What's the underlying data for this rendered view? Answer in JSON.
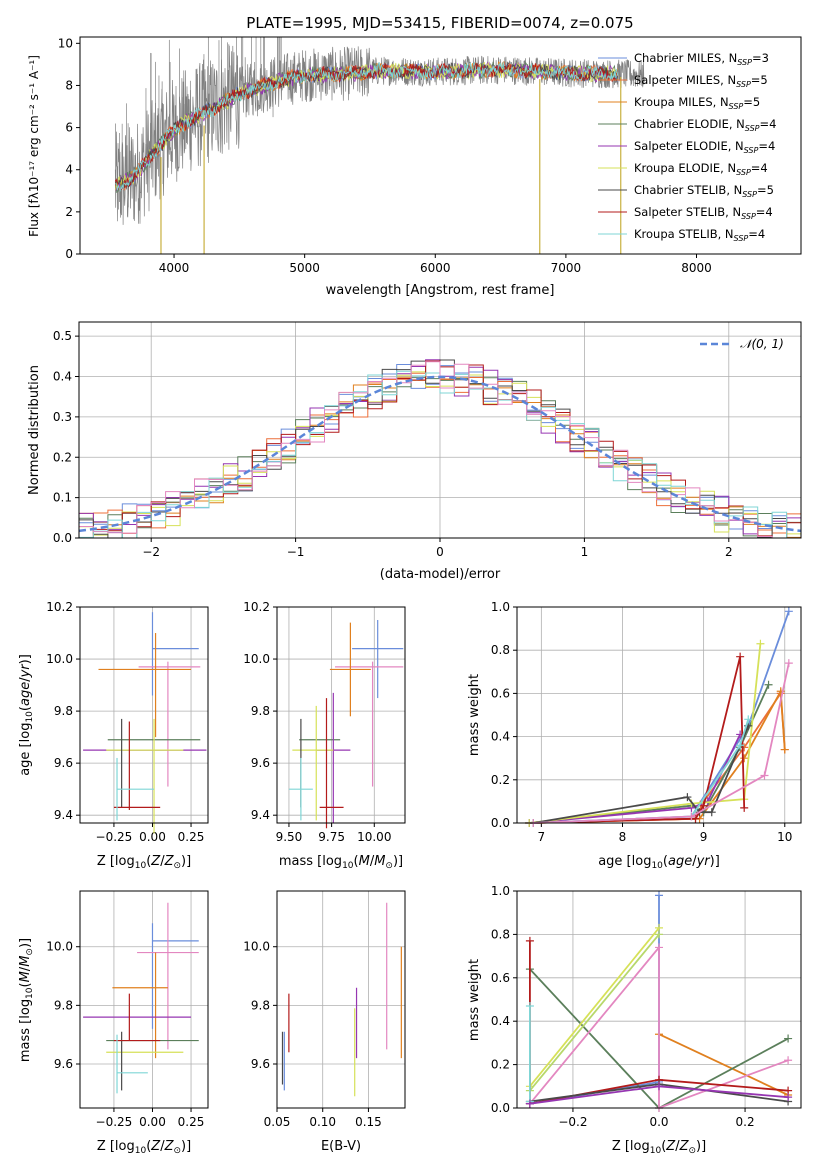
{
  "title": "PLATE=1995, MJD=53415, FIBERID=0074, z=0.075",
  "colors": {
    "Chabrier MILES": "#6a8ddb",
    "Salpeter MILES": "#ec6f3a",
    "Kroupa MILES": "#e0801f",
    "Chabrier ELODIE": "#5b7f5b",
    "Salpeter ELODIE": "#9636b2",
    "Kroupa ELODIE": "#d6e158",
    "Chabrier STELIB": "#4a4a4a",
    "Salpeter STELIB": "#b31b1b",
    "Kroupa STELIB": "#7fd6d6",
    "pink": "#e387c0",
    "green": "#b7d86b",
    "data": "#808080",
    "normal": "#5b86d8"
  },
  "chart_data": [
    {
      "id": "spectrum",
      "type": "line",
      "xlabel": "wavelength [Angstrom, rest frame]",
      "ylabel": "Flux [fλ10⁻¹⁷ erg cm⁻² s⁻¹ A⁻¹]",
      "xlim": [
        3280,
        8800
      ],
      "ylim": [
        0,
        10.3
      ],
      "xticks": [
        4000,
        5000,
        6000,
        7000,
        8000
      ],
      "yticks": [
        0,
        2,
        4,
        6,
        8,
        10
      ],
      "grid": false,
      "legend_position": "right",
      "continuum": [
        [
          3550,
          3.2
        ],
        [
          3700,
          3.7
        ],
        [
          3800,
          4.5
        ],
        [
          3900,
          5.2
        ],
        [
          4000,
          5.9
        ],
        [
          4100,
          6.3
        ],
        [
          4300,
          6.9
        ],
        [
          4500,
          7.6
        ],
        [
          4800,
          8.2
        ],
        [
          5000,
          8.5
        ],
        [
          5300,
          8.55
        ],
        [
          5600,
          8.7
        ],
        [
          6000,
          8.65
        ],
        [
          6500,
          8.75
        ],
        [
          7000,
          8.6
        ],
        [
          7400,
          8.55
        ],
        [
          7600,
          8.5
        ]
      ],
      "series": [
        {
          "name": "Chabrier MILES, N_SSP=3",
          "label_prefix": "Chabrier MILES, N",
          "label_sub": "SSP",
          "label_suffix": "=3"
        },
        {
          "name": "Salpeter MILES, N_SSP=5",
          "label_prefix": "Salpeter MILES, N",
          "label_sub": "SSP",
          "label_suffix": "=5"
        },
        {
          "name": "Kroupa MILES, N_SSP=5",
          "label_prefix": "Kroupa MILES, N",
          "label_sub": "SSP",
          "label_suffix": "=5"
        },
        {
          "name": "Chabrier ELODIE, N_SSP=4",
          "label_prefix": "Chabrier ELODIE, N",
          "label_sub": "SSP",
          "label_suffix": "=4"
        },
        {
          "name": "Salpeter ELODIE, N_SSP=4",
          "label_prefix": "Salpeter ELODIE, N",
          "label_sub": "SSP",
          "label_suffix": "=4"
        },
        {
          "name": "Kroupa ELODIE, N_SSP=4",
          "label_prefix": "Kroupa ELODIE, N",
          "label_sub": "SSP",
          "label_suffix": "=4"
        },
        {
          "name": "Chabrier STELIB, N_SSP=5",
          "label_prefix": "Chabrier STELIB, N",
          "label_sub": "SSP",
          "label_suffix": "=5"
        },
        {
          "name": "Salpeter STELIB, N_SSP=4",
          "label_prefix": "Salpeter STELIB, N",
          "label_sub": "SSP",
          "label_suffix": "=4"
        },
        {
          "name": "Kroupa STELIB, N_SSP=4",
          "label_prefix": "Kroupa STELIB, N",
          "label_sub": "SSP",
          "label_suffix": "=4"
        }
      ],
      "spikes": [
        {
          "x": 3900,
          "y0": 4.6,
          "y1": 0
        },
        {
          "x": 4230,
          "y0": 6.1,
          "y1": 0
        },
        {
          "x": 6800,
          "y0": 8.3,
          "y1": 0
        },
        {
          "x": 7420,
          "y0": 8.4,
          "y1": 0
        }
      ]
    },
    {
      "id": "residuals",
      "type": "bar",
      "xlabel": "(data-model)/error",
      "ylabel": "Normed distribution",
      "xlim": [
        -2.5,
        2.5
      ],
      "ylim": [
        0,
        0.535
      ],
      "xticks": [
        -2,
        -1,
        0,
        1,
        2
      ],
      "yticks": [
        0,
        0.1,
        0.2,
        0.3,
        0.4,
        0.5
      ],
      "grid": true,
      "legend": "N(0,1)",
      "legend_position": "top-right",
      "bin_width": 0.1
    },
    {
      "id": "age-vs-Z",
      "type": "scatter",
      "xlabel": "Z [log₁₀(Z/Z⊙)]",
      "ylabel": "age  [log₁₀(age/yr)]",
      "xlim": [
        -0.47,
        0.36
      ],
      "ylim": [
        9.37,
        10.2
      ],
      "xticks": [
        -0.25,
        0.0,
        0.25
      ],
      "yticks": [
        9.4,
        9.6,
        9.8,
        10.0,
        10.2
      ],
      "grid": true,
      "points": [
        {
          "color": "Chabrier MILES",
          "x": 0.15,
          "y": 10.04,
          "xerr": 0.15,
          "yerr": 0.0
        },
        {
          "color": "Chabrier MILES",
          "x": 0.0,
          "y": 10.02,
          "xerr": 0.0,
          "yerr": 0.16
        },
        {
          "color": "pink",
          "x": 0.11,
          "y": 9.97,
          "xerr": 0.2,
          "yerr": 0.0
        },
        {
          "color": "pink",
          "x": 0.1,
          "y": 9.75,
          "xerr": 0.0,
          "yerr": 0.24
        },
        {
          "color": "Kroupa MILES",
          "x": -0.05,
          "y": 9.96,
          "xerr": 0.3,
          "yerr": 0.0
        },
        {
          "color": "Kroupa MILES",
          "x": 0.02,
          "y": 9.9,
          "xerr": 0.0,
          "yerr": 0.2
        },
        {
          "color": "Chabrier ELODIE",
          "x": 0.01,
          "y": 9.69,
          "xerr": 0.3,
          "yerr": 0.0
        },
        {
          "color": "Salpeter ELODIE",
          "x": -0.05,
          "y": 9.65,
          "xerr": 0.4,
          "yerr": 0.0
        },
        {
          "color": "Kroupa ELODIE",
          "x": -0.05,
          "y": 9.65,
          "xerr": 0.25,
          "yerr": 0.0
        },
        {
          "color": "Kroupa ELODIE",
          "x": 0.01,
          "y": 9.55,
          "xerr": 0.0,
          "yerr": 0.22
        },
        {
          "color": "Chabrier STELIB",
          "x": -0.2,
          "y": 9.6,
          "xerr": 0.0,
          "yerr": 0.17
        },
        {
          "color": "Salpeter STELIB",
          "x": -0.15,
          "y": 9.59,
          "xerr": 0.0,
          "yerr": 0.17
        },
        {
          "color": "Salpeter STELIB",
          "x": -0.1,
          "y": 9.43,
          "xerr": 0.15,
          "yerr": 0.0
        },
        {
          "color": "Kroupa STELIB",
          "x": -0.11,
          "y": 9.5,
          "xerr": 0.12,
          "yerr": 0.0
        },
        {
          "color": "Kroupa STELIB",
          "x": -0.23,
          "y": 9.5,
          "xerr": 0.0,
          "yerr": 0.12
        }
      ]
    },
    {
      "id": "age-vs-mass",
      "type": "scatter",
      "xlabel": "mass [log₁₀(M/M⊙)]",
      "xlim": [
        9.43,
        10.18
      ],
      "ylim": [
        9.37,
        10.2
      ],
      "xticks": [
        9.5,
        9.75,
        10.0
      ],
      "yticks": [
        9.4,
        9.6,
        9.8,
        10.0,
        10.2
      ],
      "grid": true,
      "points": [
        {
          "color": "Chabrier MILES",
          "x": 10.02,
          "y": 10.04,
          "xerr": 0.15,
          "yerr": 0.0
        },
        {
          "color": "Chabrier MILES",
          "x": 10.02,
          "y": 10.0,
          "xerr": 0.0,
          "yerr": 0.15
        },
        {
          "color": "pink",
          "x": 9.97,
          "y": 9.97,
          "xerr": 0.2,
          "yerr": 0.0
        },
        {
          "color": "pink",
          "x": 9.99,
          "y": 9.75,
          "xerr": 0.0,
          "yerr": 0.24
        },
        {
          "color": "Kroupa MILES",
          "x": 9.86,
          "y": 9.96,
          "xerr": 0.12,
          "yerr": 0.0
        },
        {
          "color": "Kroupa MILES",
          "x": 9.86,
          "y": 9.96,
          "xerr": 0.0,
          "yerr": 0.18
        },
        {
          "color": "Chabrier ELODIE",
          "x": 9.68,
          "y": 9.69,
          "xerr": 0.12,
          "yerr": 0.0
        },
        {
          "color": "Salpeter ELODIE",
          "x": 9.76,
          "y": 9.65,
          "xerr": 0.1,
          "yerr": 0.0
        },
        {
          "color": "Salpeter ELODIE",
          "x": 9.76,
          "y": 9.62,
          "xerr": 0.0,
          "yerr": 0.25
        },
        {
          "color": "Kroupa ELODIE",
          "x": 9.64,
          "y": 9.65,
          "xerr": 0.12,
          "yerr": 0.0
        },
        {
          "color": "Kroupa ELODIE",
          "x": 9.66,
          "y": 9.6,
          "xerr": 0.0,
          "yerr": 0.22
        },
        {
          "color": "Chabrier STELIB",
          "x": 9.57,
          "y": 9.6,
          "xerr": 0.0,
          "yerr": 0.17
        },
        {
          "color": "Salpeter STELIB",
          "x": 9.72,
          "y": 9.6,
          "xerr": 0.0,
          "yerr": 0.25
        },
        {
          "color": "Salpeter STELIB",
          "x": 9.75,
          "y": 9.43,
          "xerr": 0.07,
          "yerr": 0.0
        },
        {
          "color": "Kroupa STELIB",
          "x": 9.57,
          "y": 9.5,
          "xerr": 0.07,
          "yerr": 0.0
        },
        {
          "color": "Kroupa STELIB",
          "x": 9.57,
          "y": 9.5,
          "xerr": 0.0,
          "yerr": 0.12
        }
      ]
    },
    {
      "id": "weight-vs-age",
      "type": "line",
      "xlabel": "age  [log₁₀(age/yr)]",
      "ylabel": "mass weight",
      "xlim": [
        6.7,
        10.2
      ],
      "ylim": [
        0,
        1.0
      ],
      "xticks": [
        7,
        8,
        9,
        10
      ],
      "yticks": [
        0.0,
        0.2,
        0.4,
        0.6,
        0.8,
        1.0
      ],
      "grid": true,
      "series": [
        {
          "color": "Chabrier MILES",
          "x": [
            6.85,
            8.85,
            9.55,
            10.05
          ],
          "y": [
            0.0,
            0.03,
            0.45,
            0.98
          ]
        },
        {
          "color": "Salpeter MILES",
          "x": [
            6.85,
            8.9,
            9.0,
            9.5,
            9.95,
            10.0
          ],
          "y": [
            0.0,
            0.02,
            0.1,
            0.35,
            0.6,
            0.34
          ]
        },
        {
          "color": "Kroupa MILES",
          "x": [
            6.9,
            8.95,
            9.5,
            9.95,
            10.0
          ],
          "y": [
            0.0,
            0.02,
            0.3,
            0.61,
            0.34
          ]
        },
        {
          "color": "Chabrier ELODIE",
          "x": [
            6.85,
            8.85,
            9.0,
            9.45,
            9.8
          ],
          "y": [
            0.0,
            0.08,
            0.05,
            0.35,
            0.64
          ]
        },
        {
          "color": "Salpeter ELODIE",
          "x": [
            6.85,
            8.85,
            9.05,
            9.45
          ],
          "y": [
            0.0,
            0.07,
            0.1,
            0.41
          ]
        },
        {
          "color": "Kroupa ELODIE",
          "x": [
            6.85,
            8.85,
            9.5,
            9.7
          ],
          "y": [
            0.0,
            0.09,
            0.11,
            0.83
          ]
        },
        {
          "color": "Chabrier STELIB",
          "x": [
            6.9,
            8.8,
            8.95,
            9.1,
            9.55
          ],
          "y": [
            0.0,
            0.12,
            0.05,
            0.05,
            0.45
          ]
        },
        {
          "color": "Salpeter STELIB",
          "x": [
            6.9,
            8.9,
            9.0,
            9.45,
            9.5
          ],
          "y": [
            0.0,
            0.02,
            0.08,
            0.77,
            0.07
          ]
        },
        {
          "color": "Kroupa STELIB",
          "x": [
            6.9,
            8.85,
            9.45,
            9.55
          ],
          "y": [
            0.0,
            0.03,
            0.36,
            0.48
          ]
        },
        {
          "color": "pink",
          "x": [
            6.9,
            8.85,
            9.75,
            10.05
          ],
          "y": [
            0.0,
            0.03,
            0.22,
            0.74
          ]
        }
      ]
    },
    {
      "id": "mass-vs-Z",
      "type": "scatter",
      "xlabel": "Z [log₁₀(Z/Z⊙)]",
      "ylabel": "mass [log₁₀(M/M⊙)]",
      "xlim": [
        -0.47,
        0.36
      ],
      "ylim": [
        9.45,
        10.19
      ],
      "xticks": [
        -0.25,
        0.0,
        0.25
      ],
      "yticks": [
        9.6,
        9.8,
        10.0
      ],
      "grid": true,
      "points": [
        {
          "color": "Chabrier MILES",
          "x": 0.15,
          "y": 10.02,
          "xerr": 0.15,
          "yerr": 0.0
        },
        {
          "color": "Chabrier MILES",
          "x": 0.0,
          "y": 9.9,
          "xerr": 0.0,
          "yerr": 0.18
        },
        {
          "color": "pink",
          "x": 0.1,
          "y": 9.98,
          "xerr": 0.2,
          "yerr": 0.0
        },
        {
          "color": "pink",
          "x": 0.1,
          "y": 9.9,
          "xerr": 0.0,
          "yerr": 0.25
        },
        {
          "color": "Kroupa MILES",
          "x": -0.08,
          "y": 9.86,
          "xerr": 0.18,
          "yerr": 0.0
        },
        {
          "color": "Kroupa MILES",
          "x": 0.02,
          "y": 9.8,
          "xerr": 0.0,
          "yerr": 0.18
        },
        {
          "color": "Chabrier ELODIE",
          "x": 0.0,
          "y": 9.68,
          "xerr": 0.3,
          "yerr": 0.0
        },
        {
          "color": "Salpeter ELODIE",
          "x": -0.1,
          "y": 9.76,
          "xerr": 0.35,
          "yerr": 0.0
        },
        {
          "color": "Kroupa ELODIE",
          "x": -0.05,
          "y": 9.64,
          "xerr": 0.25,
          "yerr": 0.0
        },
        {
          "color": "Chabrier STELIB",
          "x": -0.2,
          "y": 9.61,
          "xerr": 0.0,
          "yerr": 0.1
        },
        {
          "color": "Salpeter STELIB",
          "x": -0.15,
          "y": 9.76,
          "xerr": 0.0,
          "yerr": 0.08
        },
        {
          "color": "Salpeter STELIB",
          "x": -0.1,
          "y": 9.68,
          "xerr": 0.15,
          "yerr": 0.0
        },
        {
          "color": "Kroupa STELIB",
          "x": -0.13,
          "y": 9.57,
          "xerr": 0.1,
          "yerr": 0.0
        },
        {
          "color": "Kroupa STELIB",
          "x": -0.23,
          "y": 9.6,
          "xerr": 0.0,
          "yerr": 0.1
        }
      ]
    },
    {
      "id": "mass-vs-EBV",
      "type": "scatter",
      "xlabel": "E(B-V)",
      "xlim": [
        0.05,
        0.19
      ],
      "ylim": [
        9.45,
        10.19
      ],
      "xticks": [
        0.05,
        0.1,
        0.15
      ],
      "yticks": [
        9.6,
        9.8,
        10.0
      ],
      "grid": true,
      "points": [
        {
          "color": "Chabrier MILES",
          "x": 0.058,
          "y": 9.61,
          "xerr": 0.0,
          "yerr": 0.1
        },
        {
          "color": "Chabrier STELIB",
          "x": 0.056,
          "y": 9.62,
          "xerr": 0.0,
          "yerr": 0.09
        },
        {
          "color": "Salpeter STELIB",
          "x": 0.063,
          "y": 9.74,
          "xerr": 0.0,
          "yerr": 0.1
        },
        {
          "color": "Kroupa ELODIE",
          "x": 0.135,
          "y": 9.64,
          "xerr": 0.0,
          "yerr": 0.15
        },
        {
          "color": "Salpeter ELODIE",
          "x": 0.137,
          "y": 9.74,
          "xerr": 0.0,
          "yerr": 0.12
        },
        {
          "color": "pink",
          "x": 0.17,
          "y": 9.9,
          "xerr": 0.0,
          "yerr": 0.25
        },
        {
          "color": "Kroupa MILES",
          "x": 0.186,
          "y": 9.81,
          "xerr": 0.0,
          "yerr": 0.19
        }
      ]
    },
    {
      "id": "weight-vs-Z",
      "type": "line",
      "xlabel": "Z [log₁₀(Z/Z⊙)]",
      "ylabel": "mass weight",
      "xlim": [
        -0.33,
        0.33
      ],
      "ylim": [
        0,
        1.0
      ],
      "xticks": [
        -0.2,
        0.0,
        0.2
      ],
      "yticks": [
        0.0,
        0.2,
        0.4,
        0.6,
        0.8,
        1.0
      ],
      "grid": true,
      "series": [
        {
          "color": "Chabrier MILES",
          "x": [
            -0.3,
            0.0,
            0.0
          ],
          "y": [
            0.02,
            0.12,
            0.98
          ]
        },
        {
          "color": "Kroupa MILES",
          "x": [
            0.0,
            0.3
          ],
          "y": [
            0.34,
            0.06
          ]
        },
        {
          "color": "Chabrier ELODIE",
          "x": [
            -0.3,
            0.0,
            0.3
          ],
          "y": [
            0.64,
            0.0,
            0.32
          ]
        },
        {
          "color": "Kroupa ELODIE",
          "x": [
            -0.3,
            0.0
          ],
          "y": [
            0.1,
            0.83
          ]
        },
        {
          "color": "green",
          "x": [
            -0.3,
            0.0
          ],
          "y": [
            0.08,
            0.8
          ]
        },
        {
          "color": "pink",
          "x": [
            -0.3,
            0.0,
            0.0,
            0.3
          ],
          "y": [
            0.02,
            0.74,
            0.0,
            0.22
          ]
        },
        {
          "color": "Salpeter STELIB",
          "x": [
            -0.3,
            -0.3,
            0.0,
            0.3
          ],
          "y": [
            0.77,
            0.02,
            0.13,
            0.08
          ]
        },
        {
          "color": "Chabrier STELIB",
          "x": [
            -0.3,
            0.0,
            0.3
          ],
          "y": [
            0.03,
            0.11,
            0.03
          ]
        },
        {
          "color": "Kroupa STELIB",
          "x": [
            -0.3,
            -0.3
          ],
          "y": [
            0.47,
            0.03
          ]
        },
        {
          "color": "Salpeter ELODIE",
          "x": [
            -0.3,
            0.0,
            0.3
          ],
          "y": [
            0.02,
            0.1,
            0.05
          ]
        }
      ]
    }
  ]
}
